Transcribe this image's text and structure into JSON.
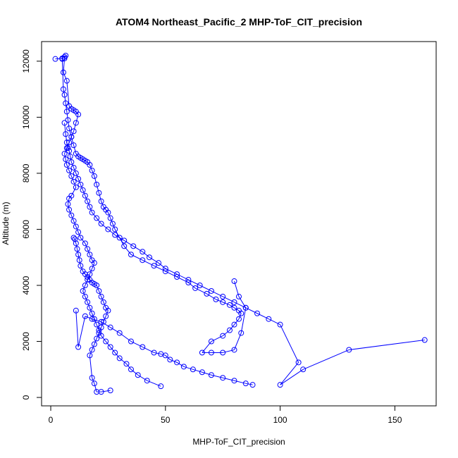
{
  "chart_data": {
    "type": "line",
    "title": "ATOM4 Northeast_Pacific_2 MHP-ToF_CIT_precision",
    "xlabel": "MHP-ToF_CIT_precision",
    "ylabel": "Altitude (m)",
    "xlim": [
      -4,
      168
    ],
    "ylim": [
      -300,
      12700
    ],
    "x_ticks": [
      0,
      50,
      100,
      150
    ],
    "y_ticks": [
      0,
      2000,
      4000,
      6000,
      8000,
      10000,
      12000
    ],
    "x_tick_labels": [
      "0",
      "50",
      "100",
      "150"
    ],
    "y_tick_labels": [
      "0",
      "2000",
      "4000",
      "6000",
      "8000",
      "10000",
      "12000"
    ],
    "grid": false,
    "legend": "none",
    "color": "#0000ff",
    "marker": "open-circle",
    "series": [
      {
        "x": [
          2,
          5,
          6,
          6.5,
          6,
          5.5,
          7,
          8,
          9,
          10,
          11,
          12,
          11,
          10,
          9,
          8,
          7,
          6,
          6.5,
          7,
          8,
          9,
          10,
          11,
          9,
          8,
          7.5,
          8,
          9,
          10,
          11,
          12,
          13,
          15,
          16,
          17,
          18,
          19,
          18,
          17,
          16,
          15,
          14,
          15,
          16,
          17,
          18,
          19,
          20,
          21,
          22,
          24,
          26,
          28,
          30,
          33,
          35,
          38,
          42,
          48
        ],
        "y": [
          12080,
          12100,
          12150,
          12200,
          12100,
          11600,
          11300,
          10400,
          10300,
          10250,
          10200,
          10100,
          9800,
          9500,
          9300,
          9100,
          8900,
          8700,
          8500,
          8300,
          8100,
          7900,
          7700,
          7500,
          7200,
          7100,
          6900,
          6700,
          6500,
          6300,
          6100,
          5900,
          5700,
          5500,
          5300,
          5100,
          4900,
          4800,
          4600,
          4400,
          4200,
          4000,
          3800,
          3600,
          3400,
          3200,
          3000,
          2800,
          2600,
          2400,
          2200,
          2000,
          1800,
          1600,
          1400,
          1200,
          1000,
          800,
          600,
          400
        ]
      },
      {
        "x": [
          5,
          5.5,
          6,
          6.5,
          7,
          7.5,
          8,
          9,
          10,
          11,
          12,
          13,
          14,
          15,
          16,
          17,
          18,
          19,
          20,
          21,
          22,
          23,
          24,
          25,
          26,
          27,
          28,
          30,
          32,
          35,
          40,
          45,
          50,
          55,
          60,
          63,
          68,
          72,
          75,
          78,
          80,
          82,
          83,
          82,
          80,
          78,
          75,
          70,
          66,
          70,
          75,
          80,
          83,
          85,
          82,
          80
        ],
        "y": [
          12080,
          11000,
          10800,
          10500,
          10200,
          9900,
          9600,
          9300,
          9000,
          8700,
          8600,
          8550,
          8500,
          8450,
          8400,
          8300,
          8100,
          7900,
          7600,
          7300,
          7000,
          6800,
          6700,
          6600,
          6400,
          6200,
          6000,
          5700,
          5400,
          5100,
          4900,
          4700,
          4500,
          4300,
          4100,
          3900,
          3700,
          3500,
          3400,
          3300,
          3200,
          3100,
          3000,
          2800,
          2600,
          2400,
          2200,
          2000,
          1600,
          1600,
          1600,
          1700,
          2300,
          3200,
          3600,
          4150
        ]
      },
      {
        "x": [
          6,
          6.5,
          7,
          7.5,
          8,
          8.5,
          9,
          10,
          11,
          12,
          13,
          14,
          15,
          16,
          17,
          18,
          20,
          22,
          25,
          28,
          32,
          36,
          40,
          43,
          47,
          50,
          55,
          60,
          65,
          70,
          75,
          80,
          85,
          90,
          95,
          100,
          108,
          100,
          110,
          130,
          163
        ],
        "y": [
          9800,
          9400,
          9100,
          8900,
          8800,
          8600,
          8400,
          8200,
          8000,
          7800,
          7600,
          7400,
          7200,
          7000,
          6800,
          6600,
          6400,
          6200,
          6000,
          5800,
          5600,
          5400,
          5200,
          5000,
          4800,
          4600,
          4400,
          4200,
          4000,
          3800,
          3600,
          3400,
          3200,
          3000,
          2800,
          2600,
          1250,
          450,
          1000,
          1700,
          2050
        ]
      },
      {
        "x": [
          10,
          10.5,
          11,
          11.5,
          12,
          12.5,
          13,
          14,
          15,
          16,
          17,
          18,
          19,
          20,
          21,
          22,
          23,
          24,
          25,
          24,
          23,
          22,
          21,
          20,
          19,
          18,
          17,
          18,
          19,
          20,
          22,
          26
        ],
        "y": [
          5700,
          5650,
          5500,
          5300,
          5100,
          4900,
          4700,
          4500,
          4400,
          4300,
          4200,
          4100,
          4050,
          4000,
          3800,
          3600,
          3400,
          3200,
          3100,
          2900,
          2700,
          2500,
          2300,
          2100,
          1900,
          1700,
          1500,
          700,
          500,
          200,
          200,
          250
        ]
      },
      {
        "x": [
          11,
          12,
          15,
          18,
          22,
          26,
          30,
          35,
          40,
          45,
          48,
          50,
          52,
          55,
          58,
          62,
          66,
          70,
          75,
          80,
          85,
          88
        ],
        "y": [
          3100,
          1800,
          2900,
          2800,
          2700,
          2500,
          2300,
          2000,
          1800,
          1600,
          1550,
          1500,
          1350,
          1250,
          1100,
          1000,
          900,
          800,
          700,
          600,
          500,
          450
        ]
      }
    ]
  }
}
